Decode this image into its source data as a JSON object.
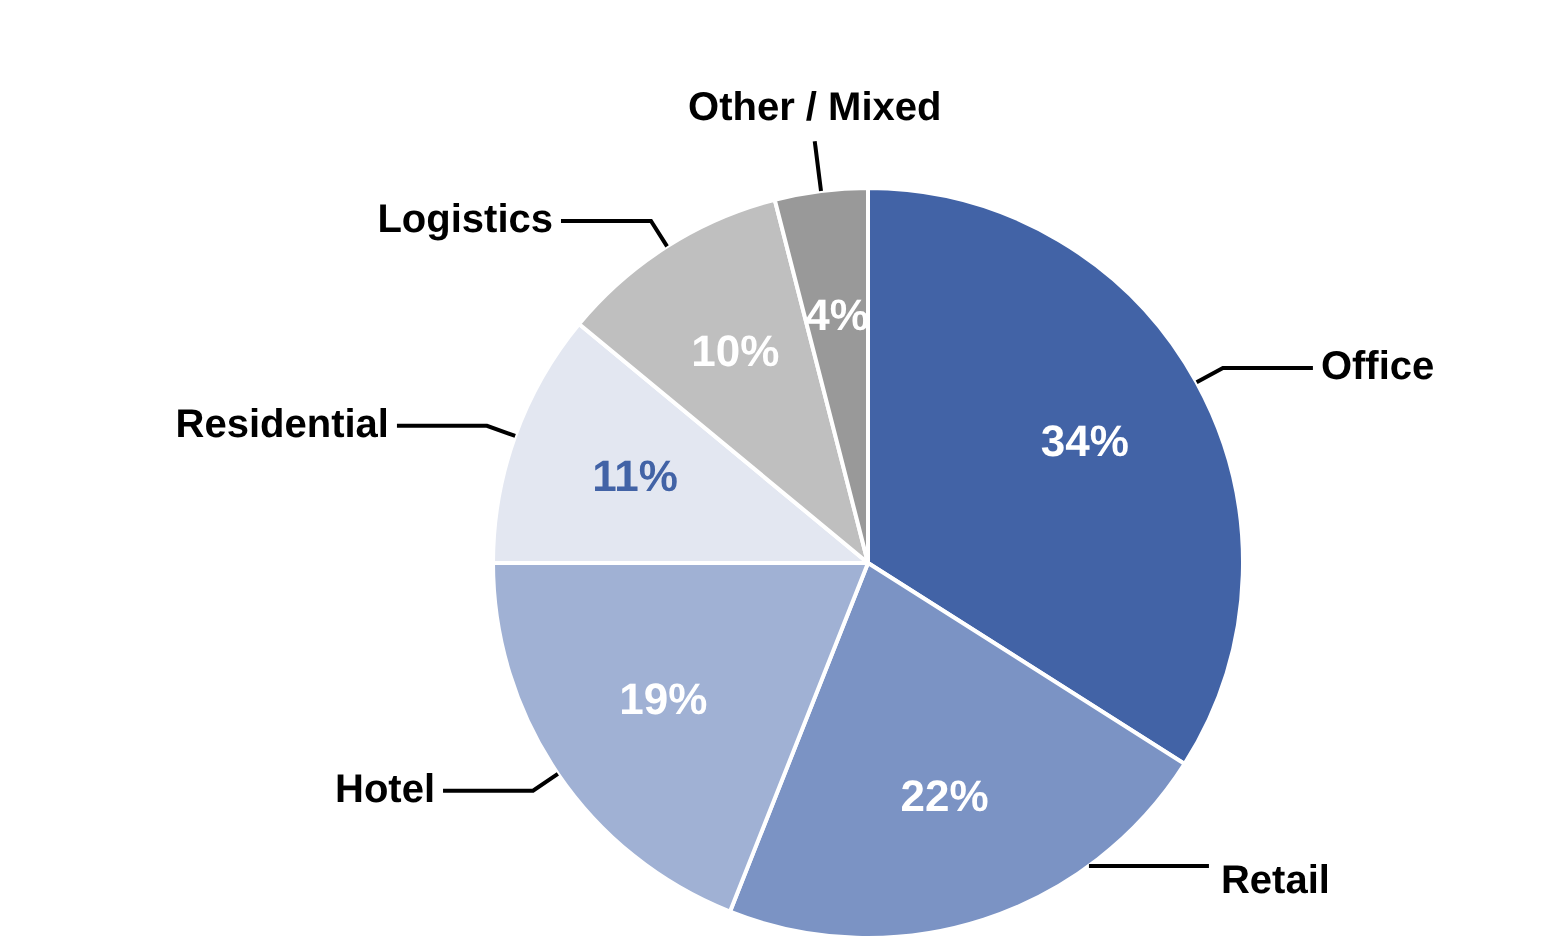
{
  "chart_data": {
    "type": "pie",
    "categories": [
      "Office",
      "Retail",
      "Hotel",
      "Residential",
      "Logistics",
      "Other / Mixed"
    ],
    "values": [
      34,
      22,
      19,
      11,
      10,
      4
    ],
    "value_labels": [
      "34%",
      "22%",
      "19%",
      "11%",
      "10%",
      "4%"
    ],
    "colors": [
      "#4263a6",
      "#7b93c4",
      "#a0b1d4",
      "#e3e7f1",
      "#bfbfbf",
      "#999999"
    ],
    "legend": false
  }
}
